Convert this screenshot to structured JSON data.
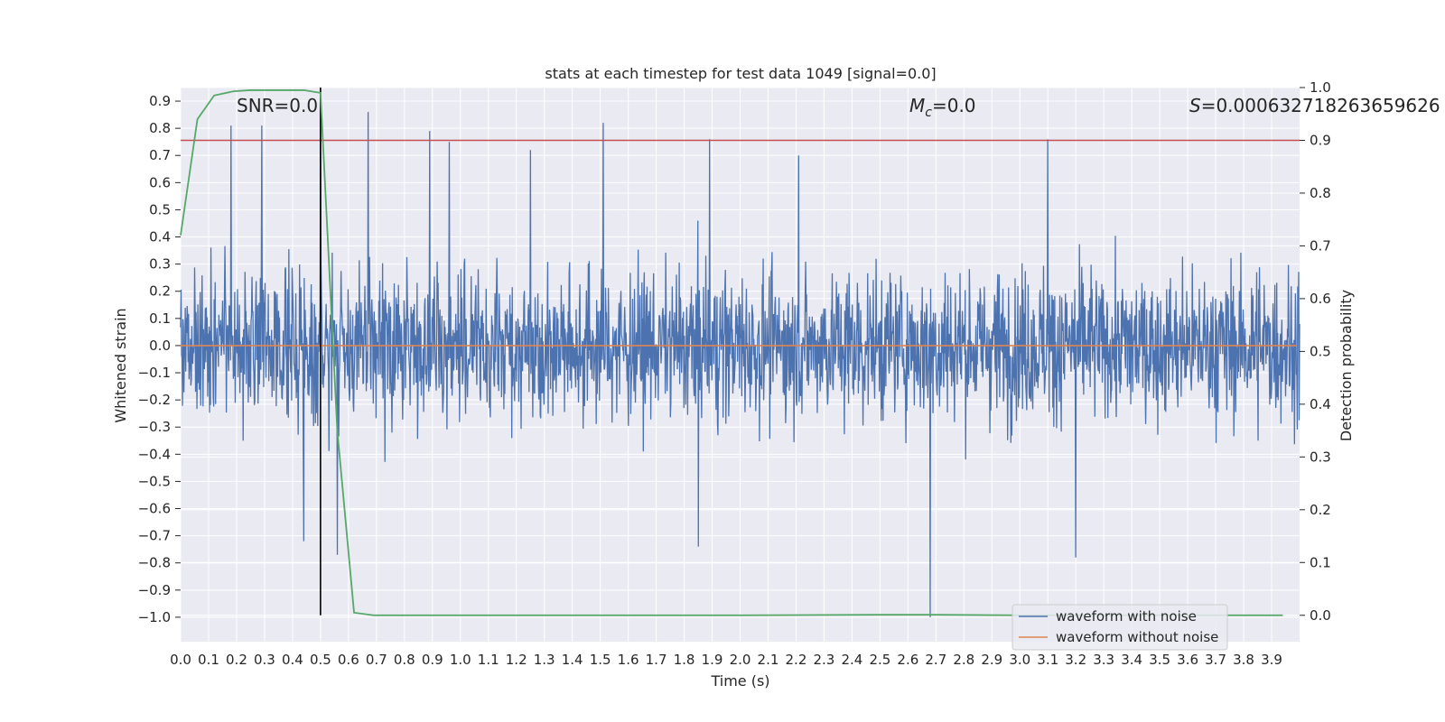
{
  "chart_data": {
    "type": "line",
    "title": "stats at each timestep for test data 1049 [signal=0.0]",
    "xlabel": "Time (s)",
    "ylabel_left": "Whitened strain",
    "ylabel_right": "Detection probability",
    "xlim": [
      0.0,
      4.0
    ],
    "ylim_left": [
      -1.09,
      0.95
    ],
    "ylim_right": [
      -0.05,
      1.0
    ],
    "x_ticks": [
      "0.0",
      "0.1",
      "0.2",
      "0.3",
      "0.4",
      "0.5",
      "0.6",
      "0.7",
      "0.8",
      "0.9",
      "1.0",
      "1.1",
      "1.2",
      "1.3",
      "1.4",
      "1.5",
      "1.6",
      "1.7",
      "1.8",
      "1.9",
      "2.0",
      "2.1",
      "2.2",
      "2.3",
      "2.4",
      "2.5",
      "2.6",
      "2.7",
      "2.8",
      "2.9",
      "3.0",
      "3.1",
      "3.2",
      "3.3",
      "3.4",
      "3.5",
      "3.6",
      "3.7",
      "3.8",
      "3.9"
    ],
    "y_ticks_left": [
      "0.9",
      "0.8",
      "0.7",
      "0.6",
      "0.5",
      "0.4",
      "0.3",
      "0.2",
      "0.1",
      "0.0",
      "−0.1",
      "−0.2",
      "−0.3",
      "−0.4",
      "−0.5",
      "−0.6",
      "−0.7",
      "−0.8",
      "−0.9",
      "−1.0"
    ],
    "y_ticks_right": [
      "1.0",
      "0.9",
      "0.8",
      "0.7",
      "0.6",
      "0.5",
      "0.4",
      "0.3",
      "0.2",
      "0.1",
      "0.0"
    ],
    "annotations": {
      "snr": "SNR=0.0",
      "mc_sym": "M",
      "mc_sub": "c",
      "mc_val": "=0.0",
      "s_sym": "S",
      "s_val": "=0.000632718263659626"
    },
    "threshold": {
      "value": 0.9,
      "color": "#c44e52"
    },
    "marker_time": 0.5,
    "series": [
      {
        "name": "waveform with noise",
        "axis": "left",
        "color": "#4c72b0",
        "note": "dense noise trace, ~4000 samples",
        "x_range": [
          0.0,
          4.0
        ],
        "typical_range": [
          -0.5,
          0.5
        ],
        "peaks": [
          {
            "x": 0.18,
            "y": 0.81
          },
          {
            "x": 0.29,
            "y": 0.81
          },
          {
            "x": 0.5,
            "y": 0.86
          },
          {
            "x": 0.67,
            "y": 0.86
          },
          {
            "x": 0.89,
            "y": 0.79
          },
          {
            "x": 0.96,
            "y": 0.75
          },
          {
            "x": 1.25,
            "y": 0.72
          },
          {
            "x": 1.51,
            "y": 0.82
          },
          {
            "x": 1.89,
            "y": 0.76
          },
          {
            "x": 2.21,
            "y": 0.7
          },
          {
            "x": 3.1,
            "y": 0.76
          }
        ],
        "troughs": [
          {
            "x": 0.44,
            "y": -0.72
          },
          {
            "x": 0.56,
            "y": -0.77
          },
          {
            "x": 1.85,
            "y": -0.74
          },
          {
            "x": 2.68,
            "y": -1.0
          },
          {
            "x": 3.2,
            "y": -0.78
          }
        ]
      },
      {
        "name": "waveform without noise",
        "axis": "left",
        "color": "#dd8452",
        "x": [
          0.0,
          3.99
        ],
        "y": [
          0.0,
          0.0
        ]
      },
      {
        "name": "detection probability",
        "axis": "right",
        "color": "#55a868",
        "x": [
          0.0,
          0.06,
          0.12,
          0.19,
          0.25,
          0.31,
          0.37,
          0.44,
          0.5,
          0.56,
          0.62,
          0.69,
          0.75,
          1.0,
          1.5,
          2.0,
          2.5,
          2.7,
          3.0,
          3.5,
          3.94
        ],
        "y": [
          0.72,
          0.94,
          0.985,
          0.993,
          0.995,
          0.995,
          0.995,
          0.995,
          0.99,
          0.35,
          0.005,
          0.0,
          0.0,
          0.0,
          0.0,
          0.0,
          0.001,
          0.001,
          0.0,
          0.0,
          0.0
        ]
      }
    ],
    "legend": {
      "location": "bottom-right",
      "entries": [
        {
          "label": "waveform with noise",
          "color": "#4c72b0"
        },
        {
          "label": "waveform without noise",
          "color": "#dd8452"
        }
      ]
    },
    "style": {
      "plot_bg": "#eaeaf2",
      "grid_color": "#ffffff",
      "marker_color": "#000000"
    }
  }
}
